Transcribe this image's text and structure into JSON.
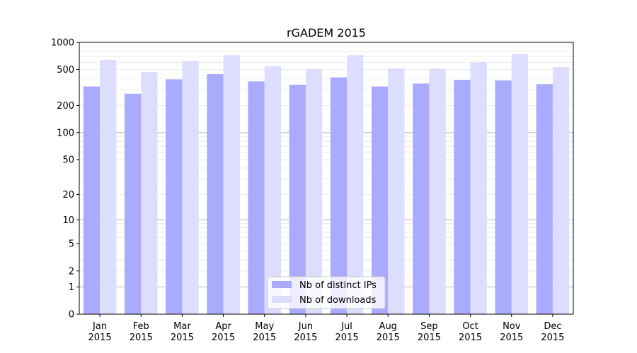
{
  "chart_data": {
    "type": "bar",
    "title": "rGADEM 2015",
    "xlabel": "",
    "ylabel": "",
    "yscale": "log(1+y)",
    "ylim": [
      0,
      1000
    ],
    "y_ticks": [
      0,
      1,
      2,
      5,
      10,
      20,
      50,
      100,
      200,
      500,
      1000
    ],
    "categories": [
      [
        "Jan",
        "2015"
      ],
      [
        "Feb",
        "2015"
      ],
      [
        "Mar",
        "2015"
      ],
      [
        "Apr",
        "2015"
      ],
      [
        "May",
        "2015"
      ],
      [
        "Jun",
        "2015"
      ],
      [
        "Jul",
        "2015"
      ],
      [
        "Aug",
        "2015"
      ],
      [
        "Sep",
        "2015"
      ],
      [
        "Oct",
        "2015"
      ],
      [
        "Nov",
        "2015"
      ],
      [
        "Dec",
        "2015"
      ]
    ],
    "series": [
      {
        "name": "Nb of distinct IPs",
        "color": "#aaaaff",
        "values": [
          325,
          270,
          390,
          445,
          370,
          340,
          410,
          325,
          350,
          385,
          380,
          345
        ]
      },
      {
        "name": "Nb of downloads",
        "color": "#ddddff",
        "values": [
          640,
          470,
          625,
          720,
          545,
          510,
          720,
          515,
          515,
          600,
          740,
          535
        ]
      }
    ],
    "grid": {
      "major": true,
      "minor": true
    },
    "legend": "bottom-center"
  }
}
